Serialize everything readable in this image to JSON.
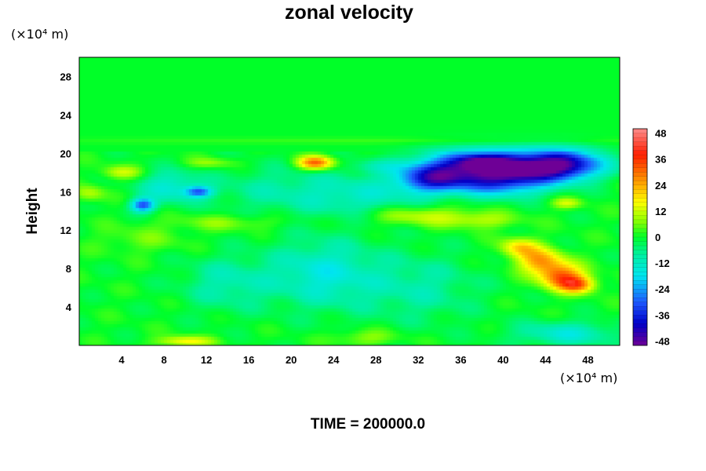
{
  "chart_data": {
    "type": "heatmap",
    "title": "zonal velocity",
    "xlabel": "",
    "ylabel": "Height",
    "x_unit": "(×10⁴ m)",
    "y_unit": "(×10⁴ m)",
    "xlim": [
      0,
      51
    ],
    "ylim": [
      0,
      30
    ],
    "x_ticks": [
      4,
      8,
      12,
      16,
      20,
      24,
      28,
      32,
      36,
      40,
      44,
      48
    ],
    "y_ticks": [
      4,
      8,
      12,
      16,
      20,
      24,
      28
    ],
    "colorbar": {
      "range": [
        -50,
        50
      ],
      "ticks": [
        48,
        36,
        24,
        12,
        0,
        -12,
        -24,
        -36,
        -48
      ]
    },
    "background_value": 0,
    "features": [
      {
        "x": 41.5,
        "y": 18.6,
        "sx": 3.2,
        "sy": 1.2,
        "v": -38
      },
      {
        "x": 46,
        "y": 18.8,
        "sx": 2.6,
        "sy": 1.1,
        "v": -36
      },
      {
        "x": 35.5,
        "y": 18.3,
        "sx": 3.2,
        "sy": 1.3,
        "v": -32
      },
      {
        "x": 33,
        "y": 17.2,
        "sx": 2.2,
        "sy": 1.0,
        "v": -22
      },
      {
        "x": 40,
        "y": 16.8,
        "sx": 3.0,
        "sy": 1.0,
        "v": -20
      },
      {
        "x": 38,
        "y": 19.2,
        "sx": 1.8,
        "sy": 0.6,
        "v": -18
      },
      {
        "x": 22.3,
        "y": 19.0,
        "sx": 1.2,
        "sy": 0.5,
        "v": 32
      },
      {
        "x": 45.5,
        "y": 7.2,
        "sx": 1.5,
        "sy": 0.9,
        "v": 30
      },
      {
        "x": 43.5,
        "y": 8.8,
        "sx": 1.5,
        "sy": 0.9,
        "v": 24
      },
      {
        "x": 47,
        "y": 6.3,
        "sx": 1.2,
        "sy": 0.6,
        "v": 26
      },
      {
        "x": 41.5,
        "y": 10.2,
        "sx": 1.3,
        "sy": 0.7,
        "v": 18
      },
      {
        "x": 6,
        "y": 14.6,
        "sx": 0.8,
        "sy": 0.5,
        "v": -30
      },
      {
        "x": 11.3,
        "y": 16.0,
        "sx": 0.9,
        "sy": 0.4,
        "v": -25
      },
      {
        "x": 8.5,
        "y": 16.5,
        "sx": 2.0,
        "sy": 1.2,
        "v": -14
      },
      {
        "x": 19,
        "y": 16.2,
        "sx": 5.0,
        "sy": 1.8,
        "v": -8
      },
      {
        "x": 27,
        "y": 15.5,
        "sx": 4.0,
        "sy": 1.5,
        "v": -10
      },
      {
        "x": 23,
        "y": 7.5,
        "sx": 3.5,
        "sy": 2.5,
        "v": -15
      },
      {
        "x": 14,
        "y": 6.5,
        "sx": 3.0,
        "sy": 2.0,
        "v": -10
      },
      {
        "x": 32,
        "y": 6.0,
        "sx": 4.0,
        "sy": 2.5,
        "v": -9
      },
      {
        "x": 46,
        "y": 1.2,
        "sx": 3.5,
        "sy": 0.9,
        "v": -14
      },
      {
        "x": 10,
        "y": 0.4,
        "sx": 1.8,
        "sy": 0.4,
        "v": 16
      },
      {
        "x": 27,
        "y": 0.8,
        "sx": 2.2,
        "sy": 0.6,
        "v": 8
      },
      {
        "x": 32,
        "y": 13.5,
        "sx": 3.5,
        "sy": 0.7,
        "v": 12
      },
      {
        "x": 38,
        "y": 13.0,
        "sx": 2.5,
        "sy": 0.6,
        "v": 9
      },
      {
        "x": 14,
        "y": 12.8,
        "sx": 4.0,
        "sy": 0.6,
        "v": 7
      },
      {
        "x": 4,
        "y": 18.0,
        "sx": 1.3,
        "sy": 0.5,
        "v": 12
      },
      {
        "x": 1,
        "y": 15.8,
        "sx": 1.0,
        "sy": 0.6,
        "v": 10
      },
      {
        "x": 46,
        "y": 14.8,
        "sx": 1.0,
        "sy": 0.4,
        "v": 12
      },
      {
        "x": 12.5,
        "y": 19.0,
        "sx": 1.8,
        "sy": 0.4,
        "v": 8
      },
      {
        "x": 28,
        "y": 18.6,
        "sx": 2.0,
        "sy": 0.5,
        "v": -6
      },
      {
        "x": 6,
        "y": 11.0,
        "sx": 3.0,
        "sy": 1.0,
        "v": 5
      },
      {
        "x": 30,
        "y": 21.3,
        "sx": 25.0,
        "sy": 0.25,
        "v": 3
      }
    ]
  },
  "footer": {
    "time_label": "TIME = 200000.0"
  }
}
